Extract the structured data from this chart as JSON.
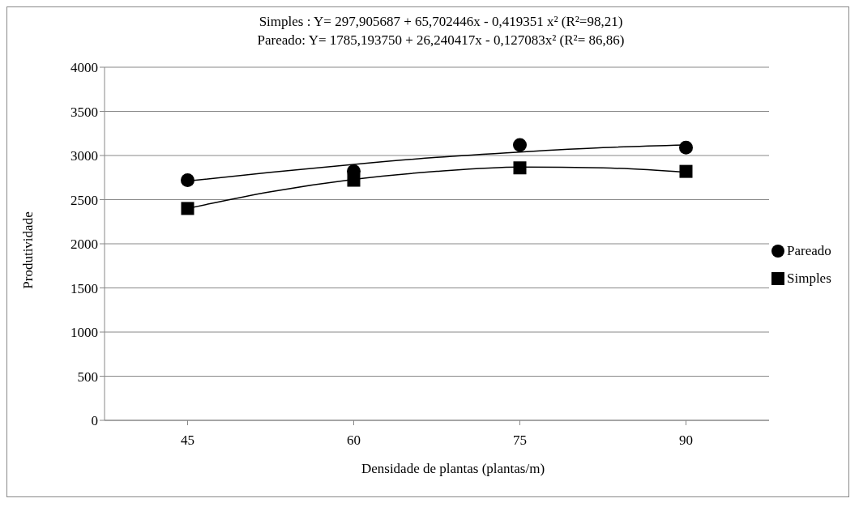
{
  "chart_data": {
    "type": "scatter",
    "title": "Simples :  Y= 297,905687 + 65,702446x - 0,419351 x² (R²=98,21)\nPareado: Y= 1785,193750 + 26,240417x - 0,127083x² (R²= 86,86)",
    "xlabel": "Densidade de plantas (plantas/m)",
    "ylabel": "Produtividade",
    "x": [
      45,
      60,
      75,
      90
    ],
    "xlim": [
      37.5,
      97.5
    ],
    "xticks": [
      45,
      60,
      75,
      90
    ],
    "ylim": [
      0,
      4000
    ],
    "yticks": [
      0,
      500,
      1000,
      1500,
      2000,
      2500,
      3000,
      3500,
      4000
    ],
    "grid": "y",
    "legend": "right",
    "series": [
      {
        "name": "Pareado",
        "color": "#000000",
        "marker": "circle",
        "values": [
          2720,
          2820,
          3120,
          3090
        ]
      },
      {
        "name": "Simples",
        "color": "#000000",
        "marker": "square",
        "values": [
          2400,
          2720,
          2860,
          2820
        ]
      },
      {
        "type": "line",
        "color": "#000000",
        "marker": "none",
        "x": [
          45,
          52.5,
          60,
          67.5,
          75,
          82.5,
          90
        ],
        "values": [
          2710,
          2810,
          2900,
          2980,
          3040,
          3090,
          3120
        ]
      },
      {
        "type": "line",
        "color": "#000000",
        "marker": "none",
        "x": [
          45,
          52.5,
          60,
          67.5,
          75,
          82.5,
          90
        ],
        "values": [
          2400,
          2590,
          2730,
          2820,
          2870,
          2860,
          2810
        ]
      }
    ]
  }
}
